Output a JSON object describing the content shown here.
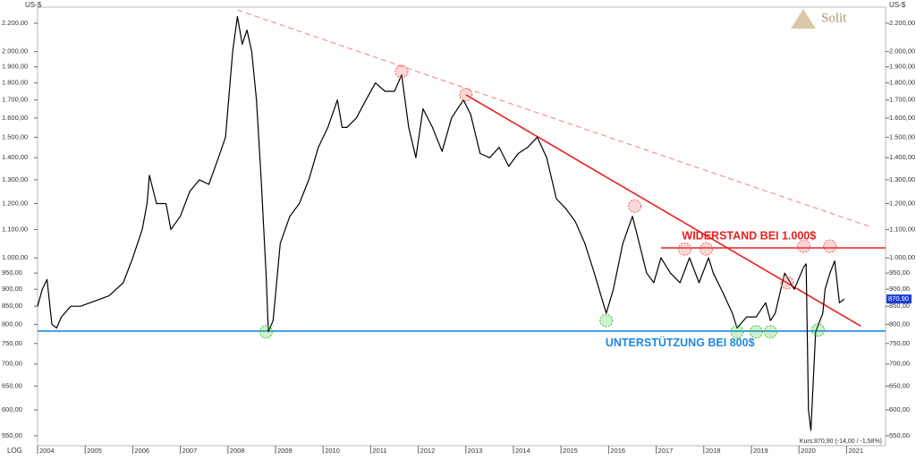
{
  "chart_data": {
    "type": "line",
    "y_axis_label": "US-$",
    "scale_label": "LOG",
    "logo": "Solit",
    "footer": "Kurs:870,90 (-14,00 / -1,58%)",
    "last_value": 870.9,
    "last_value_label": "870,90",
    "log_scale": true,
    "xlim": [
      2004,
      2021.82
    ],
    "xticks": [
      2004,
      2005,
      2006,
      2007,
      2008,
      2009,
      2010,
      2011,
      2012,
      2013,
      2014,
      2015,
      2016,
      2017,
      2018,
      2019,
      2020,
      2021
    ],
    "ylim": [
      532,
      2322
    ],
    "yticks": [
      {
        "value": 550,
        "label": "550,00"
      },
      {
        "value": 600,
        "label": "600,00"
      },
      {
        "value": 650,
        "label": "650,00"
      },
      {
        "value": 700,
        "label": "700,00"
      },
      {
        "value": 750,
        "label": "750,00"
      },
      {
        "value": 800,
        "label": "800,00"
      },
      {
        "value": 850,
        "label": "850,00"
      },
      {
        "value": 900,
        "label": "900,00"
      },
      {
        "value": 950,
        "label": "950,00"
      },
      {
        "value": 1000,
        "label": "1.000,00"
      },
      {
        "value": 1100,
        "label": "1.100,00"
      },
      {
        "value": 1200,
        "label": "1.200,00"
      },
      {
        "value": 1300,
        "label": "1.300,00"
      },
      {
        "value": 1400,
        "label": "1.400,00"
      },
      {
        "value": 1500,
        "label": "1.500,00"
      },
      {
        "value": 1600,
        "label": "1.600,00"
      },
      {
        "value": 1700,
        "label": "1.700,00"
      },
      {
        "value": 1800,
        "label": "1.800,00"
      },
      {
        "value": 1900,
        "label": "1.900,00"
      },
      {
        "value": 2000,
        "label": "2.000,00"
      },
      {
        "value": 2200,
        "label": "2.200,00"
      }
    ],
    "series": [
      {
        "color": "#000000",
        "x": [
          2004.0,
          2004.1,
          2004.2,
          2004.3,
          2004.4,
          2004.5,
          2004.7,
          2004.9,
          2005.2,
          2005.5,
          2005.8,
          2006.0,
          2006.2,
          2006.3,
          2006.35,
          2006.5,
          2006.7,
          2006.8,
          2007.0,
          2007.2,
          2007.4,
          2007.6,
          2007.8,
          2007.95,
          2008.1,
          2008.2,
          2008.3,
          2008.4,
          2008.5,
          2008.6,
          2008.7,
          2008.8,
          2008.85,
          2008.95,
          2009.1,
          2009.3,
          2009.5,
          2009.7,
          2009.9,
          2010.1,
          2010.3,
          2010.4,
          2010.5,
          2010.7,
          2010.9,
          2011.1,
          2011.3,
          2011.5,
          2011.65,
          2011.8,
          2011.95,
          2012.1,
          2012.3,
          2012.5,
          2012.7,
          2012.95,
          2013.1,
          2013.3,
          2013.5,
          2013.7,
          2013.9,
          2014.1,
          2014.3,
          2014.5,
          2014.7,
          2014.9,
          2015.1,
          2015.3,
          2015.5,
          2015.7,
          2015.95,
          2016.1,
          2016.3,
          2016.5,
          2016.6,
          2016.8,
          2016.95,
          2017.1,
          2017.3,
          2017.5,
          2017.7,
          2017.9,
          2018.1,
          2018.2,
          2018.4,
          2018.6,
          2018.7,
          2018.9,
          2019.1,
          2019.3,
          2019.4,
          2019.5,
          2019.7,
          2019.9,
          2020.1,
          2020.15,
          2020.2,
          2020.25,
          2020.35,
          2020.5,
          2020.55,
          2020.65,
          2020.75,
          2020.85,
          2020.95
        ],
        "values": [
          850,
          900,
          930,
          800,
          790,
          820,
          850,
          850,
          865,
          880,
          920,
          1000,
          1100,
          1200,
          1320,
          1200,
          1200,
          1100,
          1150,
          1250,
          1300,
          1280,
          1400,
          1500,
          2000,
          2250,
          2050,
          2150,
          2000,
          1700,
          1300,
          950,
          780,
          810,
          1050,
          1150,
          1200,
          1300,
          1450,
          1550,
          1700,
          1550,
          1550,
          1600,
          1700,
          1800,
          1750,
          1750,
          1850,
          1550,
          1400,
          1650,
          1550,
          1430,
          1600,
          1700,
          1620,
          1420,
          1400,
          1450,
          1360,
          1420,
          1450,
          1500,
          1400,
          1220,
          1180,
          1130,
          1050,
          950,
          830,
          900,
          1050,
          1150,
          1080,
          950,
          920,
          1000,
          950,
          920,
          1000,
          920,
          1000,
          950,
          890,
          830,
          790,
          820,
          820,
          860,
          810,
          830,
          950,
          900,
          970,
          980,
          600,
          560,
          780,
          830,
          900,
          950,
          990,
          860,
          871
        ]
      }
    ],
    "trendlines": [
      {
        "color": "#f08080",
        "dashed": true,
        "x": [
          2008.2,
          2021.5
        ],
        "values": [
          2300,
          1110
        ]
      },
      {
        "color": "#e82020",
        "dashed": false,
        "x": [
          2013.0,
          2021.3
        ],
        "values": [
          1730,
          795
        ]
      },
      {
        "color": "#e82020",
        "dashed": false,
        "x": [
          2017.1,
          2021.82
        ],
        "values": [
          1034,
          1034
        ]
      },
      {
        "color": "#1e88e5",
        "dashed": false,
        "x": [
          2004,
          2021.82
        ],
        "values": [
          782,
          782
        ]
      }
    ],
    "highlights": [
      {
        "color": "#f06060",
        "x": [
          2011.65,
          2013.0,
          2016.55,
          2017.6,
          2018.05,
          2019.75,
          2020.1,
          2020.65
        ],
        "values": [
          1870,
          1730,
          1190,
          1030,
          1030,
          920,
          1040,
          1040
        ]
      },
      {
        "color": "#40c040",
        "x": [
          2008.8,
          2015.95,
          2018.7,
          2019.1,
          2019.4,
          2020.4
        ],
        "values": [
          780,
          810,
          780,
          780,
          780,
          785
        ]
      }
    ],
    "annotations": [
      {
        "text": "WIDERSTAND BEI 1.000$",
        "color": "#e82020",
        "x": 2018.95,
        "value": 1075
      },
      {
        "text": "UNTERSTÜTZUNG BEI  800$",
        "color": "#1e88e5",
        "x": 2017.5,
        "value": 750
      }
    ]
  }
}
